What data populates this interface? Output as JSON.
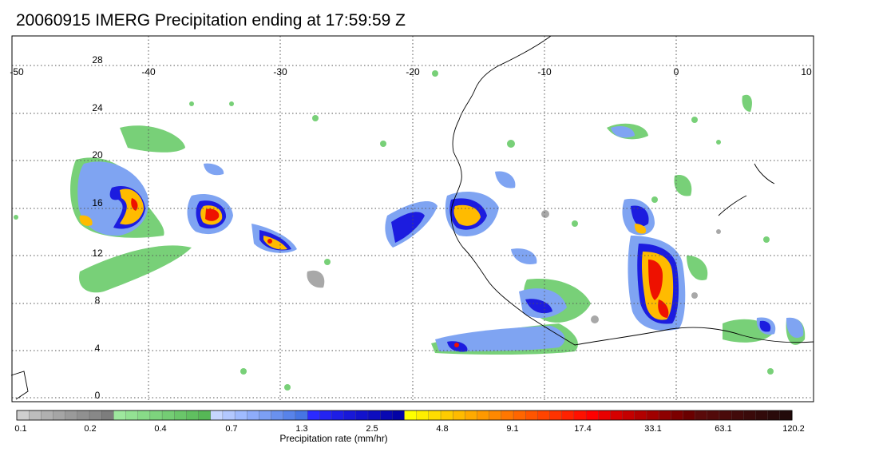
{
  "title": "20060915 IMERG Precipitation ending at 17:59:59 Z",
  "map": {
    "lon_range": [
      -50,
      10
    ],
    "lat_range": [
      -1,
      30
    ],
    "lon_ticks": [
      "-50",
      "-40",
      "-30",
      "-20",
      "-10",
      "0",
      "10"
    ],
    "lat_ticks": [
      "28",
      "24",
      "20",
      "16",
      "12",
      "8",
      "4",
      "0"
    ],
    "gridlines": "dotted"
  },
  "colorbar": {
    "label": "Precipitation rate (mm/hr)",
    "tick_labels": [
      "0.1",
      "0.2",
      "0.4",
      "0.7",
      "1.3",
      "2.5",
      "4.8",
      "9.1",
      "17.4",
      "33.1",
      "63.1",
      "120.2"
    ],
    "colors": [
      "#cfcfcf",
      "#bdbdbd",
      "#b0b0b0",
      "#a5a5a5",
      "#9a9a9a",
      "#909090",
      "#888888",
      "#7d7d7d",
      "#9ee89e",
      "#93e293",
      "#88db88",
      "#7dd47d",
      "#74cd74",
      "#6ac66a",
      "#60bf60",
      "#56b756",
      "#c6d6ff",
      "#b3c8ff",
      "#a0bbff",
      "#8eacfa",
      "#7c9ff5",
      "#6a91ef",
      "#5883ea",
      "#4675e4",
      "#2b2bff",
      "#2424f2",
      "#1e1ee5",
      "#1818d8",
      "#1212cc",
      "#0d0dbf",
      "#0808b3",
      "#0303a6",
      "#ffff00",
      "#ffee00",
      "#ffdd00",
      "#ffcc00",
      "#ffbb00",
      "#ffaa00",
      "#ff9900",
      "#ff8800",
      "#ff7700",
      "#ff6600",
      "#ff5500",
      "#ff4400",
      "#ff3300",
      "#ff2200",
      "#ff1100",
      "#ff0000",
      "#e80000",
      "#d60000",
      "#c40000",
      "#b20000",
      "#a00000",
      "#8e0000",
      "#7c0000",
      "#6a0000",
      "#5a0a0a",
      "#520a0a",
      "#4a0a0a",
      "#420a0a",
      "#3a0a0a",
      "#320a0a",
      "#2a0a0a",
      "#220a0a"
    ]
  }
}
